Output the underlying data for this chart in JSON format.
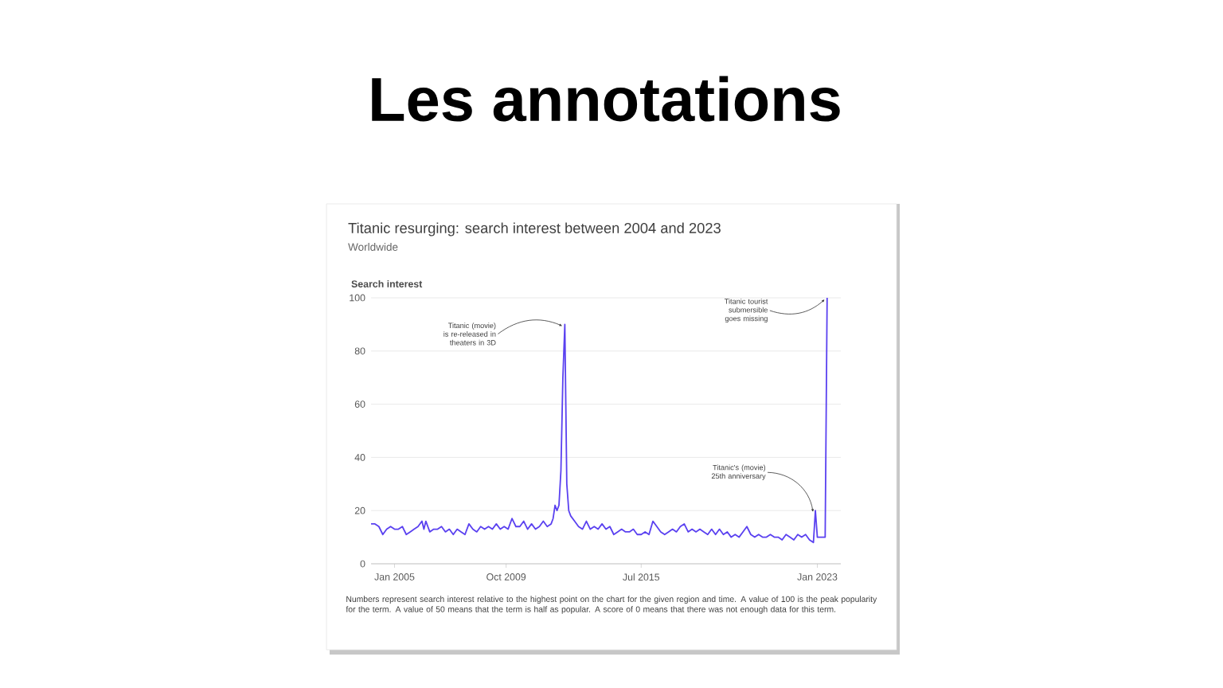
{
  "chart_data": {
    "type": "line",
    "title": "Titanic resurging: search interest between 2004 and 2023",
    "subtitle": "Worldwide",
    "ylabel": "Search interest",
    "x": [
      "2004-01",
      "2004-03",
      "2004-05",
      "2004-07",
      "2004-09",
      "2004-11",
      "2005-01",
      "2005-03",
      "2005-05",
      "2005-07",
      "2005-09",
      "2005-11",
      "2006-01",
      "2006-03",
      "2006-04",
      "2006-05",
      "2006-07",
      "2006-09",
      "2006-11",
      "2007-01",
      "2007-03",
      "2007-05",
      "2007-07",
      "2007-09",
      "2007-11",
      "2008-01",
      "2008-03",
      "2008-05",
      "2008-07",
      "2008-09",
      "2008-11",
      "2009-01",
      "2009-03",
      "2009-05",
      "2009-07",
      "2009-09",
      "2009-11",
      "2010-01",
      "2010-03",
      "2010-05",
      "2010-07",
      "2010-09",
      "2010-11",
      "2011-01",
      "2011-03",
      "2011-05",
      "2011-07",
      "2011-09",
      "2011-10",
      "2011-11",
      "2011-12",
      "2012-01",
      "2012-02",
      "2012-03",
      "2012-04",
      "2012-05",
      "2012-06",
      "2012-07",
      "2012-09",
      "2012-11",
      "2013-01",
      "2013-03",
      "2013-05",
      "2013-07",
      "2013-09",
      "2013-11",
      "2014-01",
      "2014-03",
      "2014-05",
      "2014-07",
      "2014-09",
      "2014-11",
      "2015-01",
      "2015-03",
      "2015-05",
      "2015-07",
      "2015-09",
      "2015-11",
      "2016-01",
      "2016-03",
      "2016-05",
      "2016-07",
      "2016-09",
      "2016-11",
      "2017-01",
      "2017-03",
      "2017-05",
      "2017-07",
      "2017-09",
      "2017-11",
      "2018-01",
      "2018-03",
      "2018-05",
      "2018-07",
      "2018-09",
      "2018-11",
      "2019-01",
      "2019-03",
      "2019-05",
      "2019-07",
      "2019-09",
      "2019-11",
      "2020-01",
      "2020-03",
      "2020-05",
      "2020-07",
      "2020-09",
      "2020-11",
      "2021-01",
      "2021-03",
      "2021-05",
      "2021-07",
      "2021-09",
      "2021-11",
      "2022-01",
      "2022-03",
      "2022-05",
      "2022-07",
      "2022-09",
      "2022-11",
      "2022-12",
      "2023-01",
      "2023-03",
      "2023-05",
      "2023-06"
    ],
    "values": [
      15,
      15,
      14,
      11,
      13,
      14,
      13,
      13,
      14,
      11,
      12,
      13,
      14,
      16,
      13,
      16,
      12,
      13,
      13,
      14,
      12,
      13,
      11,
      13,
      12,
      11,
      15,
      13,
      12,
      14,
      13,
      14,
      13,
      15,
      13,
      14,
      13,
      17,
      14,
      14,
      16,
      13,
      15,
      13,
      14,
      16,
      14,
      15,
      17,
      22,
      20,
      22,
      35,
      70,
      90,
      30,
      20,
      18,
      16,
      14,
      13,
      16,
      13,
      14,
      13,
      15,
      13,
      14,
      11,
      12,
      13,
      12,
      12,
      13,
      11,
      11,
      12,
      11,
      16,
      14,
      12,
      11,
      12,
      13,
      12,
      14,
      15,
      12,
      13,
      12,
      13,
      12,
      11,
      13,
      11,
      13,
      11,
      12,
      10,
      11,
      10,
      12,
      14,
      11,
      10,
      11,
      10,
      10,
      11,
      10,
      10,
      9,
      11,
      10,
      9,
      11,
      10,
      11,
      9,
      8,
      20,
      10,
      10,
      10,
      100
    ],
    "color": "#5a41f0",
    "xlim": [
      "2004-01",
      "2024-01"
    ],
    "ylim": [
      0,
      100
    ],
    "xticks": [
      {
        "value": "2005-01",
        "label": "Jan 2005"
      },
      {
        "value": "2009-10",
        "label": "Oct 2009"
      },
      {
        "value": "2015-07",
        "label": "Jul 2015"
      },
      {
        "value": "2023-01",
        "label": "Jan 2023"
      }
    ],
    "yticks": [
      0,
      20,
      40,
      60,
      80,
      100
    ],
    "grid": "y",
    "annotations": [
      "Les annotations",
      "Numbers represent search interest relative to the highest point on the chart for the given region and time. A value of 100 is the peak popularity for the term. A value of 50 means that the term is half as popular. A score of 0 means that there was not enough data for this term.",
      {
        "text": "Titanic (movie) is re-released in theaters in 3D",
        "x": "2012-04",
        "y": 90
      },
      {
        "text": "Titanic tourist submersible goes missing",
        "x": "2023-06",
        "y": 100
      },
      {
        "text": "Titanic's (movie) 25th anniversary",
        "x": "2022-12",
        "y": 20
      }
    ]
  }
}
